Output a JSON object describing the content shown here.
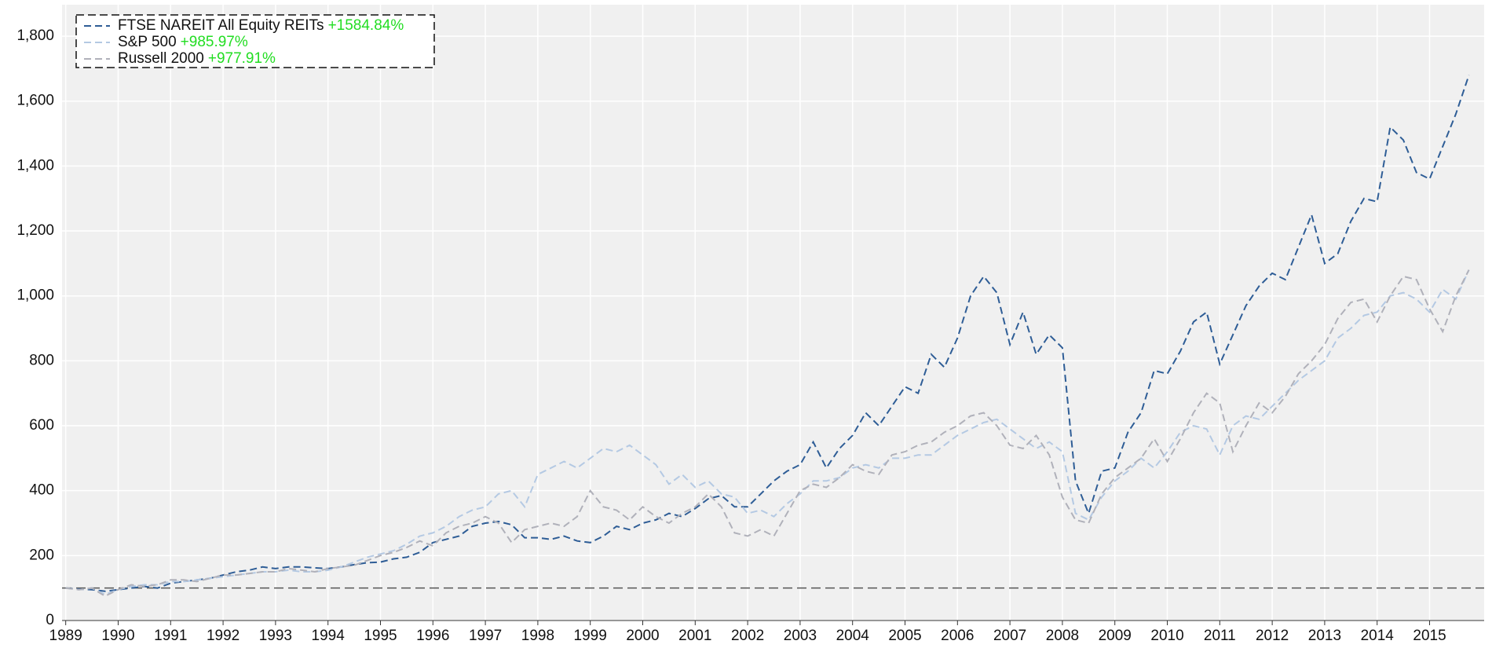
{
  "chart_data": {
    "type": "line",
    "x": [
      1989,
      1989.25,
      1989.5,
      1989.75,
      1990,
      1990.25,
      1990.5,
      1990.75,
      1991,
      1991.25,
      1991.5,
      1991.75,
      1992,
      1992.25,
      1992.5,
      1992.75,
      1993,
      1993.25,
      1993.5,
      1993.75,
      1994,
      1994.25,
      1994.5,
      1994.75,
      1995,
      1995.25,
      1995.5,
      1995.75,
      1996,
      1996.25,
      1996.5,
      1996.75,
      1997,
      1997.25,
      1997.5,
      1997.75,
      1998,
      1998.25,
      1998.5,
      1998.75,
      1999,
      1999.25,
      1999.5,
      1999.75,
      2000,
      2000.25,
      2000.5,
      2000.75,
      2001,
      2001.25,
      2001.5,
      2001.75,
      2002,
      2002.25,
      2002.5,
      2002.75,
      2003,
      2003.25,
      2003.5,
      2003.75,
      2004,
      2004.25,
      2004.5,
      2004.75,
      2005,
      2005.25,
      2005.5,
      2005.75,
      2006,
      2006.25,
      2006.5,
      2006.75,
      2007,
      2007.25,
      2007.5,
      2007.75,
      2008,
      2008.25,
      2008.5,
      2008.75,
      2009,
      2009.25,
      2009.5,
      2009.75,
      2010,
      2010.25,
      2010.5,
      2010.75,
      2011,
      2011.25,
      2011.5,
      2011.75,
      2012,
      2012.25,
      2012.5,
      2012.75,
      2013,
      2013.25,
      2013.5,
      2013.75,
      2014,
      2014.25,
      2014.5,
      2014.75,
      2015,
      2015.25,
      2015.5,
      2015.75
    ],
    "series": [
      {
        "name": "FTSE NAREIT All Equity REITs",
        "return_label": "+1584.84%",
        "color": "#2e5d96",
        "values": [
          100,
          97,
          95,
          90,
          95,
          100,
          105,
          100,
          115,
          120,
          125,
          130,
          140,
          150,
          155,
          165,
          160,
          165,
          165,
          162,
          160,
          165,
          172,
          178,
          180,
          190,
          195,
          210,
          240,
          250,
          260,
          290,
          300,
          305,
          295,
          255,
          255,
          250,
          260,
          245,
          240,
          260,
          290,
          280,
          300,
          310,
          330,
          320,
          345,
          375,
          385,
          350,
          350,
          390,
          430,
          460,
          480,
          550,
          470,
          530,
          570,
          640,
          600,
          660,
          720,
          700,
          820,
          780,
          870,
          1000,
          1060,
          1010,
          850,
          950,
          820,
          880,
          840,
          430,
          330,
          460,
          470,
          580,
          640,
          770,
          760,
          830,
          920,
          950,
          790,
          880,
          970,
          1030,
          1070,
          1050,
          1150,
          1250,
          1100,
          1130,
          1230,
          1300,
          1290,
          1520,
          1480,
          1380,
          1360,
          1460,
          1560,
          1680
        ]
      },
      {
        "name": "S&P 500",
        "return_label": "+985.97%",
        "color": "#b4c9e3",
        "values": [
          100,
          95,
          100,
          80,
          95,
          105,
          110,
          110,
          120,
          120,
          125,
          130,
          135,
          140,
          145,
          150,
          150,
          155,
          150,
          150,
          155,
          165,
          180,
          195,
          205,
          215,
          235,
          260,
          270,
          290,
          320,
          340,
          350,
          390,
          400,
          350,
          450,
          470,
          490,
          470,
          500,
          530,
          520,
          540,
          510,
          480,
          420,
          450,
          410,
          430,
          390,
          380,
          330,
          340,
          320,
          360,
          390,
          430,
          430,
          440,
          470,
          480,
          470,
          500,
          500,
          510,
          510,
          540,
          570,
          590,
          610,
          620,
          590,
          560,
          530,
          550,
          520,
          330,
          310,
          380,
          430,
          460,
          500,
          470,
          520,
          580,
          600,
          590,
          510,
          600,
          630,
          620,
          660,
          700,
          740,
          770,
          800,
          870,
          900,
          940,
          950,
          1000,
          1010,
          990,
          950,
          1020,
          990,
          1080
        ]
      },
      {
        "name": "Russell 2000",
        "return_label": "+977.91%",
        "color": "#b0b1ba",
        "values": [
          100,
          95,
          100,
          75,
          95,
          110,
          105,
          110,
          125,
          125,
          120,
          130,
          140,
          140,
          145,
          150,
          150,
          160,
          155,
          150,
          160,
          165,
          170,
          185,
          200,
          210,
          225,
          245,
          230,
          270,
          290,
          300,
          320,
          300,
          240,
          280,
          290,
          300,
          290,
          320,
          400,
          350,
          340,
          310,
          350,
          320,
          300,
          330,
          350,
          390,
          350,
          270,
          260,
          280,
          260,
          330,
          400,
          420,
          410,
          440,
          480,
          460,
          450,
          510,
          520,
          540,
          550,
          580,
          600,
          630,
          640,
          600,
          540,
          530,
          570,
          510,
          380,
          310,
          300,
          390,
          440,
          470,
          500,
          560,
          490,
          560,
          640,
          700,
          670,
          520,
          600,
          670,
          640,
          690,
          760,
          800,
          850,
          930,
          980,
          990,
          920,
          1000,
          1060,
          1050,
          960,
          890,
          1000,
          1080
        ]
      }
    ],
    "baseline": 100,
    "xlim": [
      1988.93,
      2016.04
    ],
    "xticks": [
      1989,
      1990,
      1991,
      1992,
      1993,
      1994,
      1995,
      1996,
      1997,
      1998,
      1999,
      2000,
      2001,
      2002,
      2003,
      2004,
      2005,
      2006,
      2007,
      2008,
      2009,
      2010,
      2011,
      2012,
      2013,
      2014,
      2015
    ],
    "ylim": [
      0,
      1880
    ],
    "yticks": [
      0,
      200,
      400,
      600,
      800,
      {
        "value": 1000,
        "label": "1,000"
      },
      {
        "value": 1200,
        "label": "1,200"
      },
      {
        "value": 1400,
        "label": "1,400"
      },
      {
        "value": 1600,
        "label": "1,600"
      },
      {
        "value": 1800,
        "label": "1,800"
      }
    ],
    "grid": true,
    "legend": "upper left"
  }
}
